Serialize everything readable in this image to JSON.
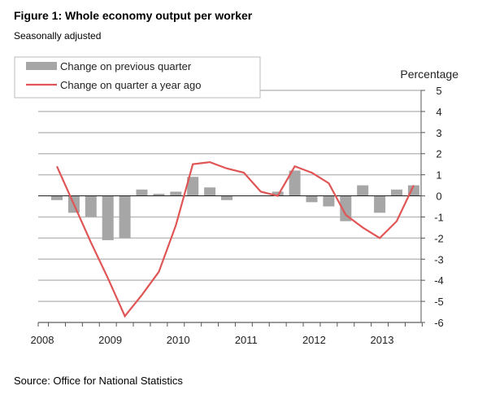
{
  "title": "Figure 1: Whole economy output per worker",
  "subtitle": "Seasonally adjusted",
  "source": "Source: Office for National Statistics",
  "chart_data": {
    "type": "bar+line",
    "title": "Figure 1: Whole economy output per worker",
    "ylabel": "Percentage",
    "ylim": [
      -6,
      5
    ],
    "yticks": [
      "5",
      "4",
      "3",
      "2",
      "1",
      "0",
      "-1",
      "-2",
      "-3",
      "-4",
      "-5",
      "-6"
    ],
    "ytick_values": [
      5,
      4,
      3,
      2,
      1,
      0,
      -1,
      -2,
      -3,
      -4,
      -5,
      -6
    ],
    "xtick_labels": [
      "2008",
      "2009",
      "2010",
      "2011",
      "2012",
      "2013"
    ],
    "grid": true,
    "legend_position": "top-left",
    "categories": [
      "2008Q1",
      "2008Q2",
      "2008Q3",
      "2008Q4",
      "2009Q1",
      "2009Q2",
      "2009Q3",
      "2009Q4",
      "2010Q1",
      "2010Q2",
      "2010Q3",
      "2010Q4",
      "2011Q1",
      "2011Q2",
      "2011Q3",
      "2011Q4",
      "2012Q1",
      "2012Q2",
      "2012Q3",
      "2012Q4",
      "2013Q1",
      "2013Q2"
    ],
    "series": [
      {
        "name": "Change on previous quarter",
        "type": "bar",
        "color": "#a6a6a6",
        "values": [
          -0.2,
          -0.8,
          -1.0,
          -2.1,
          -2.0,
          0.3,
          0.1,
          0.2,
          0.9,
          0.4,
          -0.2,
          0.0,
          0.0,
          0.2,
          1.2,
          -0.3,
          -0.5,
          -1.2,
          0.5,
          -0.8,
          0.3,
          0.5
        ]
      },
      {
        "name": "Change on quarter a year ago",
        "type": "line",
        "color": "#e05555",
        "values": [
          1.4,
          -0.4,
          -2.2,
          -3.9,
          -5.7,
          -4.7,
          -3.6,
          -1.4,
          1.5,
          1.6,
          1.3,
          1.1,
          0.2,
          0.0,
          1.4,
          1.1,
          0.6,
          -0.9,
          -1.5,
          -2.0,
          -1.2,
          0.5
        ]
      }
    ]
  }
}
